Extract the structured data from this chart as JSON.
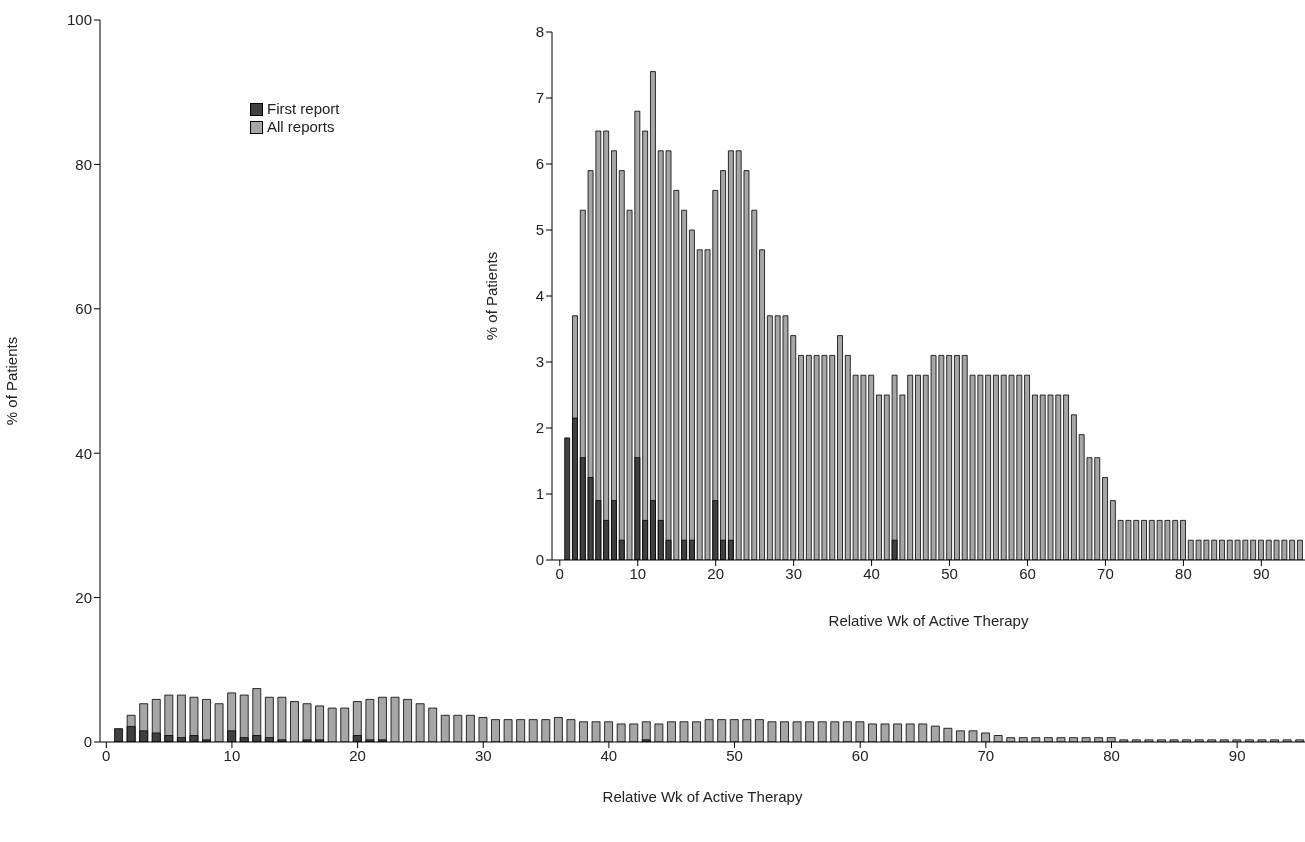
{
  "chart_data": [
    {
      "type": "bar",
      "xlabel": "Relative Wk of Active Therapy",
      "ylabel": "% of Patients",
      "legend": "top left",
      "x": [
        1,
        2,
        3,
        4,
        5,
        6,
        7,
        8,
        9,
        10,
        11,
        12,
        13,
        14,
        15,
        16,
        17,
        18,
        19,
        20,
        21,
        22,
        23,
        24,
        25,
        26,
        27,
        28,
        29,
        30,
        31,
        32,
        33,
        34,
        35,
        36,
        37,
        38,
        39,
        40,
        41,
        42,
        43,
        44,
        45,
        46,
        47,
        48,
        49,
        50,
        51,
        52,
        53,
        54,
        55,
        56,
        57,
        58,
        59,
        60,
        61,
        62,
        63,
        64,
        65,
        66,
        67,
        68,
        69,
        70,
        71,
        72,
        73,
        74,
        75,
        76,
        77,
        78,
        79,
        80,
        81,
        82,
        83,
        84,
        85,
        86,
        87,
        88,
        89,
        90,
        91,
        92,
        93,
        94,
        95
      ],
      "series": [
        {
          "name": "First report",
          "color": "#404040",
          "values": [
            1.85,
            2.15,
            1.55,
            1.25,
            0.9,
            0.6,
            0.9,
            0.3,
            0,
            1.55,
            0.6,
            0.9,
            0.6,
            0.3,
            0,
            0.3,
            0.3,
            0,
            0,
            0.9,
            0.3,
            0.3,
            0,
            0,
            0,
            0,
            0,
            0,
            0,
            0,
            0,
            0,
            0,
            0,
            0,
            0,
            0,
            0,
            0,
            0,
            0,
            0,
            0.3,
            0,
            0,
            0,
            0,
            0,
            0,
            0,
            0,
            0,
            0,
            0,
            0,
            0,
            0,
            0,
            0,
            0,
            0,
            0,
            0,
            0,
            0,
            0,
            0,
            0,
            0,
            0,
            0,
            0,
            0,
            0,
            0,
            0,
            0,
            0,
            0,
            0,
            0,
            0,
            0,
            0,
            0,
            0,
            0,
            0,
            0,
            0,
            0,
            0,
            0,
            0,
            0
          ]
        },
        {
          "name": "All reports",
          "color": "#a6a6a6",
          "values": [
            null,
            3.7,
            5.3,
            5.9,
            6.5,
            6.5,
            6.2,
            5.9,
            5.3,
            6.8,
            6.5,
            7.4,
            6.2,
            6.2,
            5.6,
            5.3,
            5.0,
            4.7,
            4.7,
            5.6,
            5.9,
            6.2,
            6.2,
            5.9,
            5.3,
            4.7,
            3.7,
            3.7,
            3.7,
            3.4,
            3.1,
            3.1,
            3.1,
            3.1,
            3.1,
            3.4,
            3.1,
            2.8,
            2.8,
            2.8,
            2.5,
            2.5,
            2.8,
            2.5,
            2.8,
            2.8,
            2.8,
            3.1,
            3.1,
            3.1,
            3.1,
            3.1,
            2.8,
            2.8,
            2.8,
            2.8,
            2.8,
            2.8,
            2.8,
            2.8,
            2.5,
            2.5,
            2.5,
            2.5,
            2.5,
            2.2,
            1.9,
            1.55,
            1.55,
            1.25,
            0.9,
            0.6,
            0.6,
            0.6,
            0.6,
            0.6,
            0.6,
            0.6,
            0.6,
            0.6,
            0.3,
            0.3,
            0.3,
            0.3,
            0.3,
            0.3,
            0.3,
            0.3,
            0.3,
            0.3,
            0.3,
            0.3,
            0.3,
            0.3,
            0.3
          ]
        }
      ],
      "xlim": [
        -0.5,
        95.4
      ],
      "xticks": [
        0,
        10,
        20,
        30,
        40,
        50,
        60,
        70,
        80,
        90
      ],
      "ylim": [
        0,
        100
      ],
      "yticks": [
        0,
        20,
        40,
        60,
        80,
        100
      ],
      "grid": false
    },
    {
      "type": "bar",
      "xlabel": "Relative Wk of Active Therapy",
      "ylabel": "% of Patients",
      "x": [
        1,
        2,
        3,
        4,
        5,
        6,
        7,
        8,
        9,
        10,
        11,
        12,
        13,
        14,
        15,
        16,
        17,
        18,
        19,
        20,
        21,
        22,
        23,
        24,
        25,
        26,
        27,
        28,
        29,
        30,
        31,
        32,
        33,
        34,
        35,
        36,
        37,
        38,
        39,
        40,
        41,
        42,
        43,
        44,
        45,
        46,
        47,
        48,
        49,
        50,
        51,
        52,
        53,
        54,
        55,
        56,
        57,
        58,
        59,
        60,
        61,
        62,
        63,
        64,
        65,
        66,
        67,
        68,
        69,
        70,
        71,
        72,
        73,
        74,
        75,
        76,
        77,
        78,
        79,
        80,
        81,
        82,
        83,
        84,
        85,
        86,
        87,
        88,
        89,
        90,
        91,
        92,
        93,
        94,
        95
      ],
      "series": [
        {
          "color": "#404040",
          "values": [
            1.85,
            2.15,
            1.55,
            1.25,
            0.9,
            0.6,
            0.9,
            0.3,
            0,
            1.55,
            0.6,
            0.9,
            0.6,
            0.3,
            0,
            0.3,
            0.3,
            0,
            0,
            0.9,
            0.3,
            0.3,
            0,
            0,
            0,
            0,
            0,
            0,
            0,
            0,
            0,
            0,
            0,
            0,
            0,
            0,
            0,
            0,
            0,
            0,
            0,
            0,
            0.3,
            0,
            0,
            0,
            0,
            0,
            0,
            0,
            0,
            0,
            0,
            0,
            0,
            0,
            0,
            0,
            0,
            0,
            0,
            0,
            0,
            0,
            0,
            0,
            0,
            0,
            0,
            0,
            0,
            0,
            0,
            0,
            0,
            0,
            0,
            0,
            0,
            0,
            0,
            0,
            0,
            0,
            0,
            0,
            0,
            0,
            0,
            0,
            0,
            0,
            0,
            0,
            0
          ]
        },
        {
          "color": "#a6a6a6",
          "values": [
            null,
            3.7,
            5.3,
            5.9,
            6.5,
            6.5,
            6.2,
            5.9,
            5.3,
            6.8,
            6.5,
            7.4,
            6.2,
            6.2,
            5.6,
            5.3,
            5.0,
            4.7,
            4.7,
            5.6,
            5.9,
            6.2,
            6.2,
            5.9,
            5.3,
            4.7,
            3.7,
            3.7,
            3.7,
            3.4,
            3.1,
            3.1,
            3.1,
            3.1,
            3.1,
            3.4,
            3.1,
            2.8,
            2.8,
            2.8,
            2.5,
            2.5,
            2.8,
            2.5,
            2.8,
            2.8,
            2.8,
            3.1,
            3.1,
            3.1,
            3.1,
            3.1,
            2.8,
            2.8,
            2.8,
            2.8,
            2.8,
            2.8,
            2.8,
            2.8,
            2.5,
            2.5,
            2.5,
            2.5,
            2.5,
            2.2,
            1.9,
            1.55,
            1.55,
            1.25,
            0.9,
            0.6,
            0.6,
            0.6,
            0.6,
            0.6,
            0.6,
            0.6,
            0.6,
            0.6,
            0.3,
            0.3,
            0.3,
            0.3,
            0.3,
            0.3,
            0.3,
            0.3,
            0.3,
            0.3,
            0.3,
            0.3,
            0.3,
            0.3,
            0.3
          ]
        }
      ],
      "xlim": [
        -1,
        95.6
      ],
      "xticks": [
        0,
        10,
        20,
        30,
        40,
        50,
        60,
        70,
        80,
        90
      ],
      "ylim": [
        0,
        8
      ],
      "yticks": [
        0,
        1,
        2,
        3,
        4,
        5,
        6,
        7,
        8
      ],
      "grid": false
    }
  ]
}
